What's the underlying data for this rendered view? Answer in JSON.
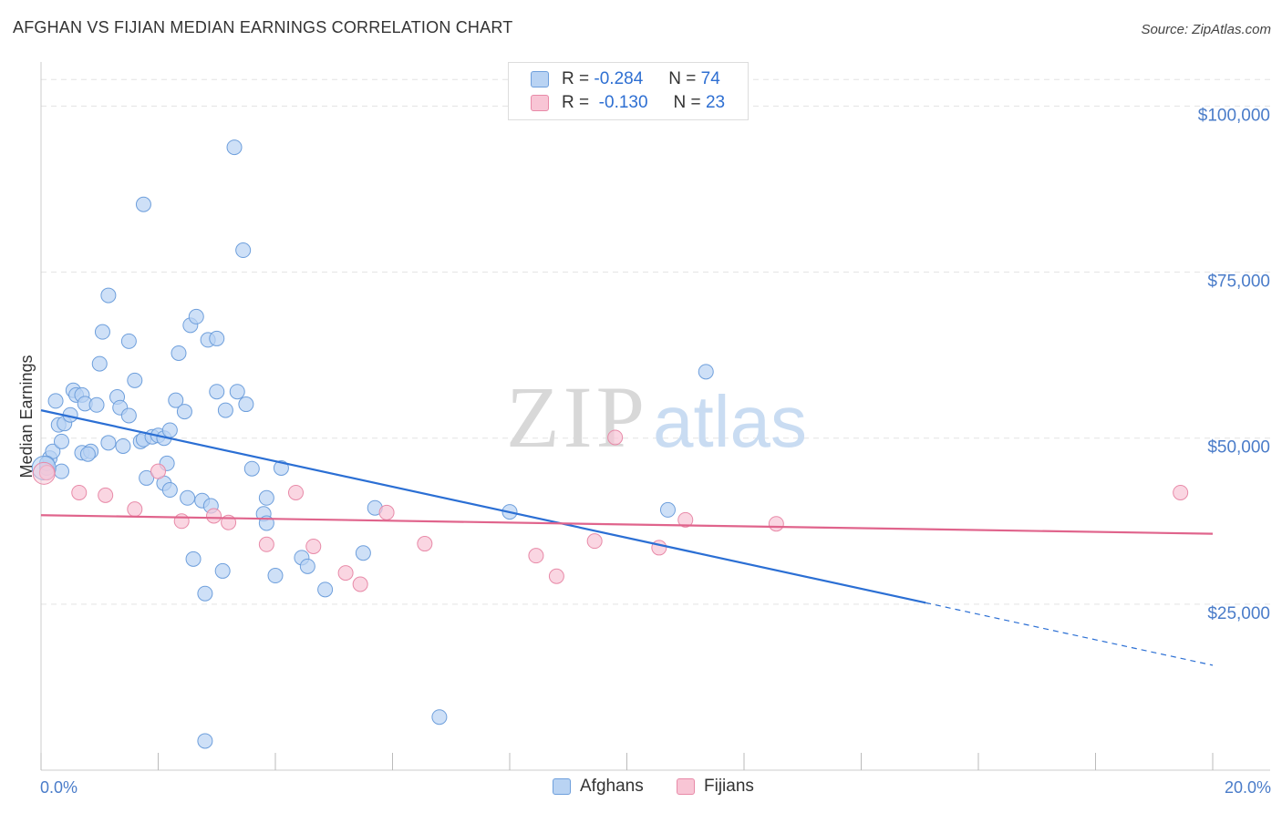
{
  "title": "AFGHAN VS FIJIAN MEDIAN EARNINGS CORRELATION CHART",
  "source": "Source: ZipAtlas.com",
  "watermark": {
    "zip": "ZIP",
    "atlas": "atlas"
  },
  "legend": {
    "rows": [
      {
        "r_label": "R =",
        "r_value": "-0.284",
        "n_label": "N =",
        "n_value": "74"
      },
      {
        "r_label": "R =",
        "r_value": "-0.130",
        "n_label": "N =",
        "n_value": "23"
      }
    ]
  },
  "colors": {
    "afghans_fill": "#b9d3f3",
    "afghans_stroke": "#6e9fdc",
    "afghans_line": "#2b6fd4",
    "fijians_fill": "#f8c5d5",
    "fijians_stroke": "#e88aa8",
    "fijians_line": "#e0648c",
    "grid": "#e3e3e3",
    "axis_text": "#4a7cc9"
  },
  "chart_data": {
    "type": "scatter",
    "title": "AFGHAN VS FIJIAN MEDIAN EARNINGS CORRELATION CHART",
    "xlabel": "",
    "ylabel": "Median Earnings",
    "xlim": [
      0,
      20
    ],
    "ylim": [
      0,
      105000
    ],
    "x_tick_labels": [
      "0.0%",
      "20.0%"
    ],
    "y_ticks": [
      25000,
      50000,
      75000,
      100000
    ],
    "y_tick_labels": [
      "$25,000",
      "$50,000",
      "$75,000",
      "$100,000"
    ],
    "grid": true,
    "legend_position": "top-center",
    "series": [
      {
        "name": "Afghans",
        "R": -0.284,
        "N": 74,
        "trend": {
          "x0": 0,
          "y0": 54200,
          "x_solid_end": 15.1,
          "x1": 20,
          "y1": 15800
        },
        "points": [
          [
            0.1,
            45500
          ],
          [
            0.15,
            47000
          ],
          [
            0.2,
            48000
          ],
          [
            0.25,
            55600
          ],
          [
            0.3,
            52000
          ],
          [
            0.35,
            49500
          ],
          [
            0.4,
            52200
          ],
          [
            0.5,
            53500
          ],
          [
            0.55,
            57200
          ],
          [
            0.6,
            56500
          ],
          [
            0.7,
            56500
          ],
          [
            0.75,
            55200
          ],
          [
            0.7,
            47800
          ],
          [
            0.85,
            48000
          ],
          [
            0.8,
            47600
          ],
          [
            0.95,
            55000
          ],
          [
            1.0,
            61200
          ],
          [
            1.05,
            66000
          ],
          [
            1.15,
            71500
          ],
          [
            1.15,
            49300
          ],
          [
            1.3,
            56200
          ],
          [
            1.35,
            54600
          ],
          [
            1.4,
            48800
          ],
          [
            1.5,
            53400
          ],
          [
            1.5,
            64600
          ],
          [
            1.6,
            58700
          ],
          [
            1.7,
            49500
          ],
          [
            1.75,
            49800
          ],
          [
            1.75,
            85200
          ],
          [
            1.8,
            44000
          ],
          [
            1.9,
            50200
          ],
          [
            2.0,
            50400
          ],
          [
            2.1,
            43200
          ],
          [
            2.1,
            50000
          ],
          [
            2.15,
            46200
          ],
          [
            2.2,
            51200
          ],
          [
            2.2,
            42200
          ],
          [
            2.3,
            55700
          ],
          [
            2.35,
            62800
          ],
          [
            2.45,
            54000
          ],
          [
            2.5,
            41000
          ],
          [
            2.55,
            67000
          ],
          [
            2.6,
            31800
          ],
          [
            2.65,
            68300
          ],
          [
            2.75,
            40600
          ],
          [
            2.8,
            26600
          ],
          [
            2.85,
            64800
          ],
          [
            2.9,
            39800
          ],
          [
            3.0,
            65000
          ],
          [
            3.0,
            57000
          ],
          [
            3.1,
            30000
          ],
          [
            3.15,
            54200
          ],
          [
            3.3,
            93800
          ],
          [
            3.35,
            57000
          ],
          [
            3.45,
            78300
          ],
          [
            3.5,
            55100
          ],
          [
            3.6,
            45400
          ],
          [
            3.8,
            38600
          ],
          [
            3.85,
            41000
          ],
          [
            3.85,
            37200
          ],
          [
            4.0,
            29300
          ],
          [
            4.1,
            45500
          ],
          [
            4.45,
            32000
          ],
          [
            4.55,
            30700
          ],
          [
            4.85,
            27200
          ],
          [
            5.5,
            32700
          ],
          [
            5.7,
            39500
          ],
          [
            6.8,
            8000
          ],
          [
            8.0,
            38900
          ],
          [
            10.7,
            39200
          ],
          [
            11.35,
            60000
          ],
          [
            2.8,
            4400
          ],
          [
            0.35,
            45000
          ],
          [
            0.1,
            46200
          ]
        ]
      },
      {
        "name": "Fijians",
        "R": -0.13,
        "N": 23,
        "trend": {
          "x0": 0,
          "y0": 38400,
          "x1": 20,
          "y1": 35600
        },
        "points": [
          [
            0.1,
            44800
          ],
          [
            0.65,
            41800
          ],
          [
            1.1,
            41400
          ],
          [
            1.6,
            39300
          ],
          [
            2.0,
            45000
          ],
          [
            2.4,
            37500
          ],
          [
            2.95,
            38300
          ],
          [
            3.2,
            37300
          ],
          [
            3.85,
            34000
          ],
          [
            4.35,
            41800
          ],
          [
            4.65,
            33700
          ],
          [
            5.2,
            29700
          ],
          [
            5.45,
            28000
          ],
          [
            5.9,
            38800
          ],
          [
            6.55,
            34100
          ],
          [
            8.45,
            32300
          ],
          [
            8.8,
            29200
          ],
          [
            9.45,
            34500
          ],
          [
            9.8,
            50100
          ],
          [
            10.55,
            33500
          ],
          [
            11.0,
            37700
          ],
          [
            12.55,
            37100
          ],
          [
            19.45,
            41800
          ]
        ]
      }
    ]
  }
}
